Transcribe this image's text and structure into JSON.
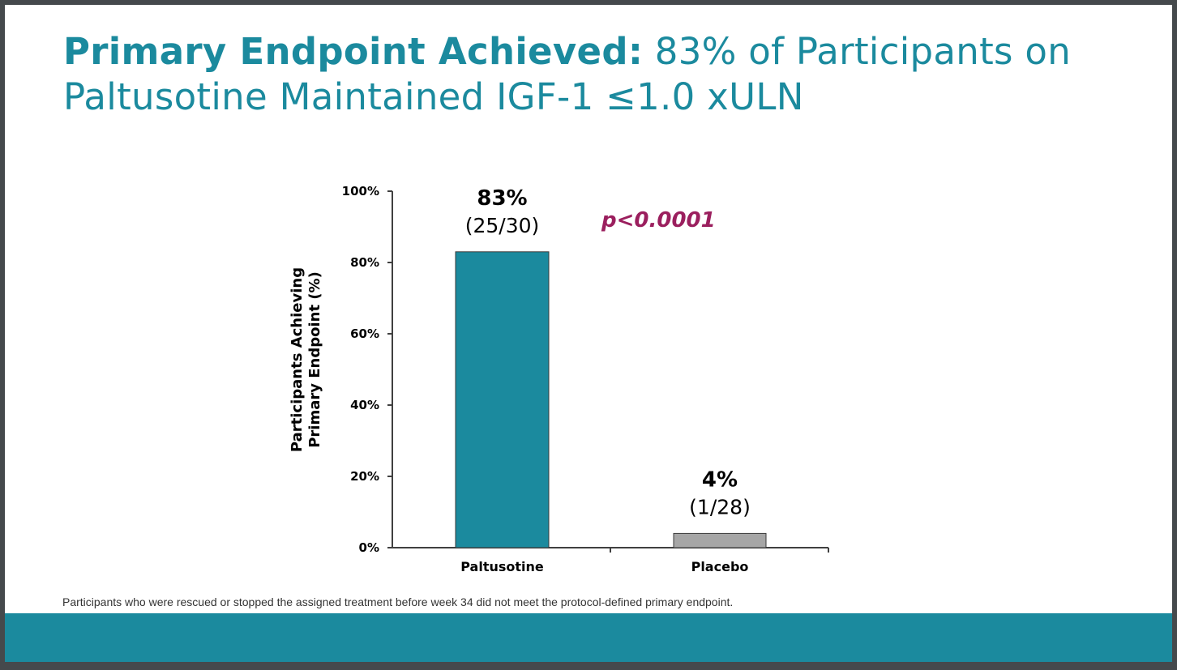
{
  "slide": {
    "title_bold": "Primary Endpoint Achieved:",
    "title_light_line1": " 83% of Participants on",
    "title_line2": "Paltusotine Maintained IGF-1 ≤1.0 xULN",
    "footnote": "Participants who were rescued or stopped the assigned treatment before week 34 did not meet the protocol-defined primary endpoint.",
    "colors": {
      "brand_teal": "#1b8a9e",
      "placebo_gray": "#a6a6a6",
      "pvalue_magenta": "#9b1f5e",
      "frame": "#45494c"
    }
  },
  "chart_data": {
    "type": "bar",
    "title": "",
    "categories": [
      "Paltusotine",
      "Placebo"
    ],
    "values": [
      83,
      4
    ],
    "value_labels": [
      "83%",
      "4%"
    ],
    "count_labels": [
      "(25/30)",
      "(1/28)"
    ],
    "bar_colors": [
      "#1b8a9e",
      "#a6a6a6"
    ],
    "xlabel": "",
    "ylabel": "Participants Achieving Primary Endpoint (%)",
    "ylabel_lines": [
      "Participants Achieving",
      "Primary Endpoint (%)"
    ],
    "ylim": [
      0,
      100
    ],
    "yticks": [
      0,
      20,
      40,
      60,
      80,
      100
    ],
    "ytick_labels": [
      "0%",
      "20%",
      "40%",
      "60%",
      "80%",
      "100%"
    ],
    "grid": false,
    "legend": null,
    "annotations": [
      {
        "text": "p<0.0001",
        "style": "bold italic",
        "color": "#9b1f5e"
      }
    ]
  }
}
